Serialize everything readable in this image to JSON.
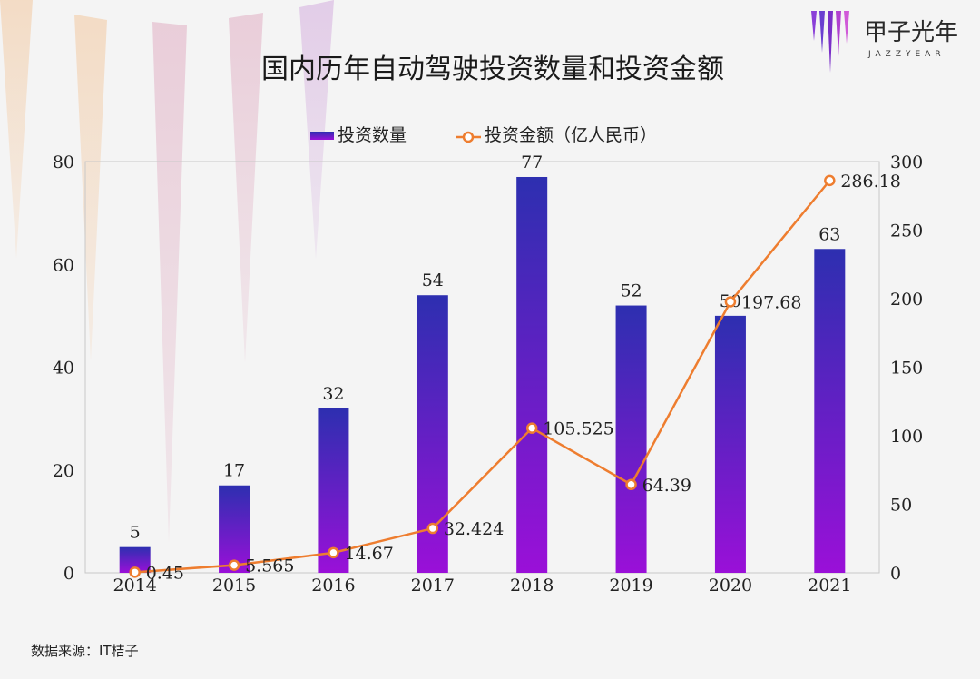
{
  "chart_data": {
    "type": "bar+line",
    "title": "国内历年自动驾驶投资数量和投资金额",
    "categories": [
      "2014",
      "2015",
      "2016",
      "2017",
      "2018",
      "2019",
      "2020",
      "2021"
    ],
    "series": [
      {
        "name": "投资数量",
        "type": "bar",
        "axis": "left",
        "values": [
          5,
          17,
          32,
          54,
          77,
          52,
          50,
          63
        ],
        "value_labels": [
          "5",
          "17",
          "32",
          "54",
          "77",
          "52",
          "50",
          "63"
        ]
      },
      {
        "name": "投资金额（亿人民币）",
        "type": "line",
        "axis": "right",
        "values": [
          0.45,
          5.565,
          14.67,
          32.424,
          105.525,
          64.39,
          197.68,
          286.18
        ],
        "value_labels": [
          "0.45",
          "5.565",
          "14.67",
          "32.424",
          "105.525",
          "64.39",
          "197.68",
          "286.18"
        ]
      }
    ],
    "y_left": {
      "min": 0,
      "max": 80,
      "ticks": [
        "0",
        "20",
        "40",
        "60",
        "80"
      ]
    },
    "y_right": {
      "min": 0,
      "max": 300,
      "ticks": [
        "0",
        "50",
        "100",
        "150",
        "200",
        "250",
        "300"
      ]
    },
    "legend_position": "top-center",
    "grid": false
  },
  "colors": {
    "bar_top": "#2d2fb0",
    "bar_bottom": "#9a10d8",
    "line": "#ee7d2f",
    "marker_fill": "#ffffff"
  },
  "source": "数据来源：IT桔子",
  "logo": {
    "cn": "甲子光年",
    "en": "JAZZYEAR"
  }
}
